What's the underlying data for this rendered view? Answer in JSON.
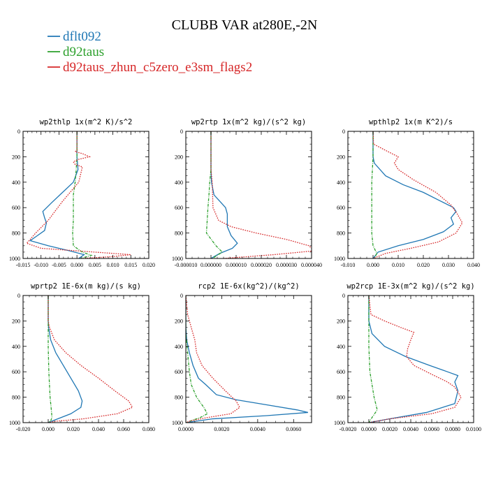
{
  "title": "CLUBB VAR at280E,-2N",
  "legend": [
    {
      "name": "dflt092",
      "color": "#1f77b4"
    },
    {
      "name": "d92taus",
      "color": "#2ca02c"
    },
    {
      "name": "d92taus_zhun_c5zero_e3sm_flags2",
      "color": "#d62728"
    }
  ],
  "chart_data": [
    {
      "type": "line",
      "title": "wp2thlp   1x(m^2 K)/s^2",
      "xlim": [
        -0.015,
        0.02
      ],
      "ylim": [
        1000,
        0
      ],
      "xticks": [
        -0.015,
        -0.01,
        -0.005,
        0,
        0.005,
        0.01,
        0.015,
        0.02
      ],
      "xtick_labels": [
        "-0.015",
        "-0.010",
        "-0.005",
        "0.000",
        "0.005",
        "0.010",
        "0.015",
        "0.020"
      ],
      "yticks": [
        0,
        200,
        400,
        600,
        800,
        1000
      ],
      "series": [
        {
          "name": "dflt092",
          "x": [
            0,
            0,
            0.0003,
            -0.001,
            -0.004,
            -0.007,
            -0.0095,
            -0.009,
            -0.0085,
            -0.009,
            -0.011,
            -0.013,
            -0.008,
            -0.002,
            0.002,
            0.0005
          ],
          "y": [
            0,
            200,
            300,
            400,
            480,
            560,
            630,
            680,
            720,
            780,
            820,
            860,
            900,
            940,
            970,
            1000
          ]
        },
        {
          "name": "d92taus",
          "x": [
            0,
            0,
            -0.0002,
            -0.0005,
            -0.001,
            -0.001,
            -0.001,
            -0.0012,
            -0.001,
            0.0015,
            0.004,
            0.001
          ],
          "y": [
            0,
            200,
            300,
            400,
            500,
            600,
            700,
            800,
            900,
            950,
            975,
            1000
          ]
        },
        {
          "name": "d92taus_zhun_c5zero_e3sm_flags2",
          "x": [
            0,
            0,
            -0.0005,
            0.0015,
            0.0035,
            0.0005,
            -0.001,
            -0.0005,
            0.0015,
            0.0005,
            -0.004,
            -0.008,
            -0.0115,
            -0.013,
            -0.014,
            -0.01,
            0.005,
            0.015,
            0.01,
            0.0015
          ],
          "y": [
            0,
            150,
            160,
            175,
            200,
            220,
            240,
            260,
            280,
            400,
            550,
            700,
            800,
            850,
            880,
            920,
            950,
            970,
            985,
            1000
          ]
        }
      ]
    },
    {
      "type": "line",
      "title": "wp2rtp   1x(m^2 kg)/(s^2 kg)",
      "xlim": [
        -1e-05,
        4e-05
      ],
      "ylim": [
        1000,
        0
      ],
      "xticks": [
        -1e-05,
        0,
        1e-05,
        2e-05,
        3e-05,
        4e-05
      ],
      "xtick_labels": [
        "-0.000010",
        "0.000000",
        "0.000010",
        "0.000020",
        "0.000030",
        "0.000040"
      ],
      "yticks": [
        0,
        200,
        400,
        600,
        800,
        1000
      ],
      "series": [
        {
          "name": "dflt092",
          "x": [
            0,
            0,
            2e-07,
            1.2e-06,
            3.5e-06,
            5.8e-06,
            6.5e-06,
            6.5e-06,
            8e-06,
            1.05e-05,
            8.5e-06,
            3.5e-06,
            0
          ],
          "y": [
            0,
            300,
            400,
            500,
            550,
            600,
            650,
            750,
            820,
            880,
            920,
            960,
            1000
          ]
        },
        {
          "name": "d92taus",
          "x": [
            0,
            0,
            -5e-07,
            -8e-07,
            -1.2e-06,
            -1.5e-06,
            -1.8e-06,
            2e-06,
            4.5e-06,
            5e-07
          ],
          "y": [
            0,
            300,
            400,
            500,
            600,
            700,
            800,
            900,
            950,
            1000
          ]
        },
        {
          "name": "d92taus_zhun_c5zero_e3sm_flags2",
          "x": [
            0,
            0,
            5e-07,
            8e-07,
            3e-06,
            8e-06,
            1.8e-05,
            3e-05,
            3.9e-05,
            4.1e-05,
            2.5e-05,
            5e-06
          ],
          "y": [
            0,
            300,
            400,
            600,
            700,
            750,
            800,
            850,
            900,
            940,
            970,
            1000
          ]
        }
      ]
    },
    {
      "type": "line",
      "title": "wpthlp2   1x(m K^2)/s",
      "xlim": [
        -0.01,
        0.04
      ],
      "ylim": [
        1000,
        0
      ],
      "xticks": [
        -0.01,
        0,
        0.01,
        0.02,
        0.03,
        0.04
      ],
      "xtick_labels": [
        "-0.010",
        "0.000",
        "0.010",
        "0.020",
        "0.030",
        "0.040"
      ],
      "yticks": [
        0,
        200,
        400,
        600,
        800,
        1000
      ],
      "series": [
        {
          "name": "dflt092",
          "x": [
            0,
            0,
            0.0005,
            0.005,
            0.012,
            0.02,
            0.026,
            0.032,
            0.033,
            0.031,
            0.032,
            0.028,
            0.02,
            0.01,
            0.002,
            0
          ],
          "y": [
            0,
            200,
            250,
            350,
            420,
            480,
            540,
            600,
            630,
            680,
            730,
            790,
            850,
            900,
            950,
            1000
          ]
        },
        {
          "name": "d92taus",
          "x": [
            0,
            0,
            -0.0005,
            -0.0005,
            -0.0005,
            0,
            0.0015,
            0.0005
          ],
          "y": [
            0,
            200,
            400,
            600,
            800,
            900,
            960,
            1000
          ]
        },
        {
          "name": "d92taus_zhun_c5zero_e3sm_flags2",
          "x": [
            0,
            0.0002,
            0.005,
            0.01,
            0.0085,
            0.01,
            0.016,
            0.025,
            0.031,
            0.0335,
            0.0355,
            0.033,
            0.026,
            0.015,
            0.005,
            0
          ],
          "y": [
            0,
            100,
            150,
            200,
            250,
            300,
            380,
            480,
            580,
            650,
            720,
            800,
            870,
            920,
            960,
            1000
          ]
        }
      ]
    },
    {
      "type": "line",
      "title": "wprtp2   1E-6x(m kg)/(s kg)",
      "xlim": [
        -0.02,
        0.08
      ],
      "ylim": [
        1000,
        0
      ],
      "xticks": [
        -0.02,
        0,
        0.02,
        0.04,
        0.06,
        0.08
      ],
      "xtick_labels": [
        "-0.020",
        "0.000",
        "0.020",
        "0.040",
        "0.060",
        "0.080"
      ],
      "yticks": [
        0,
        200,
        400,
        600,
        800,
        1000
      ],
      "series": [
        {
          "name": "dflt092",
          "x": [
            0,
            0,
            0.0003,
            0.002,
            0.006,
            0.012,
            0.018,
            0.024,
            0.027,
            0.026,
            0.018,
            0.005,
            0
          ],
          "y": [
            0,
            200,
            250,
            350,
            450,
            550,
            650,
            750,
            830,
            880,
            930,
            980,
            1000
          ]
        },
        {
          "name": "d92taus",
          "x": [
            0,
            0,
            0,
            0.0005,
            0.0015,
            0.0025,
            0.003,
            0.002,
            0
          ],
          "y": [
            0,
            200,
            400,
            600,
            800,
            900,
            960,
            985,
            1000
          ]
        },
        {
          "name": "d92taus_zhun_c5zero_e3sm_flags2",
          "x": [
            0,
            0,
            0.001,
            0.005,
            0.014,
            0.026,
            0.04,
            0.053,
            0.064,
            0.067,
            0.055,
            0.028,
            0.005,
            0
          ],
          "y": [
            0,
            200,
            250,
            350,
            450,
            550,
            650,
            750,
            830,
            880,
            930,
            970,
            990,
            1000
          ]
        }
      ]
    },
    {
      "type": "line",
      "title": "rcp2   1E-6x(kg^2)/(kg^2)",
      "xlim": [
        0,
        0.007
      ],
      "ylim": [
        1000,
        0
      ],
      "xticks": [
        0,
        0.002,
        0.004,
        0.006
      ],
      "xtick_labels": [
        "0.0000",
        "0.0020",
        "0.0040",
        "0.0060"
      ],
      "yticks": [
        0,
        200,
        400,
        600,
        800,
        1000
      ],
      "series": [
        {
          "name": "dflt092",
          "x": [
            0,
            0,
            5e-05,
            0.0002,
            0.0004,
            0.0007,
            0.0011,
            0.0017,
            0.0028,
            0.0045,
            0.0062,
            0.0068,
            0.0045,
            0.0015,
            0
          ],
          "y": [
            0,
            250,
            350,
            450,
            550,
            650,
            700,
            780,
            820,
            860,
            900,
            920,
            945,
            970,
            1000
          ]
        },
        {
          "name": "d92taus",
          "x": [
            0,
            0,
            0.0001,
            0.0002,
            0.0003,
            0.0006,
            0.001,
            0.0012,
            0.0008,
            0.0003,
            0
          ],
          "y": [
            0,
            300,
            450,
            600,
            700,
            800,
            880,
            930,
            960,
            985,
            1000
          ]
        },
        {
          "name": "d92taus_zhun_c5zero_e3sm_flags2",
          "x": [
            0,
            0.0001,
            0.0003,
            0.0005,
            0.0006,
            0.0009,
            0.0015,
            0.0022,
            0.0028,
            0.003,
            0.0025,
            0.0012,
            0.0003,
            0
          ],
          "y": [
            0,
            150,
            250,
            350,
            450,
            550,
            650,
            750,
            830,
            880,
            930,
            960,
            985,
            1000
          ]
        }
      ]
    },
    {
      "type": "line",
      "title": "wp2rcp   1E-3x(m^2 kg)/(s^2 kg)",
      "xlim": [
        -0.002,
        0.01
      ],
      "ylim": [
        1000,
        0
      ],
      "xticks": [
        -0.002,
        0,
        0.002,
        0.004,
        0.006,
        0.008,
        0.01
      ],
      "xtick_labels": [
        "-0.0020",
        "0.0000",
        "0.0020",
        "0.0040",
        "0.0060",
        "0.0080",
        "0.0100"
      ],
      "yticks": [
        0,
        200,
        400,
        600,
        800,
        1000
      ],
      "series": [
        {
          "name": "dflt092",
          "x": [
            0,
            0,
            0.0003,
            0.0015,
            0.0035,
            0.0058,
            0.0075,
            0.0085,
            0.0082,
            0.0085,
            0.0082,
            0.0055,
            0.002,
            0
          ],
          "y": [
            0,
            200,
            300,
            400,
            480,
            550,
            600,
            630,
            680,
            750,
            850,
            920,
            970,
            1000
          ]
        },
        {
          "name": "d92taus",
          "x": [
            0,
            0,
            0,
            0.0001,
            0.0003,
            0.0005,
            0.0008,
            0.0003,
            0
          ],
          "y": [
            0,
            300,
            400,
            600,
            700,
            800,
            900,
            960,
            1000
          ]
        },
        {
          "name": "d92taus_zhun_c5zero_e3sm_flags2",
          "x": [
            0,
            0.0002,
            0.0015,
            0.003,
            0.0043,
            0.004,
            0.0037,
            0.0036,
            0.0043,
            0.006,
            0.0075,
            0.0082,
            0.0088,
            0.0082,
            0.006,
            0.002,
            0
          ],
          "y": [
            0,
            150,
            200,
            250,
            290,
            350,
            420,
            480,
            550,
            620,
            680,
            720,
            800,
            880,
            930,
            970,
            1000
          ]
        }
      ]
    }
  ]
}
